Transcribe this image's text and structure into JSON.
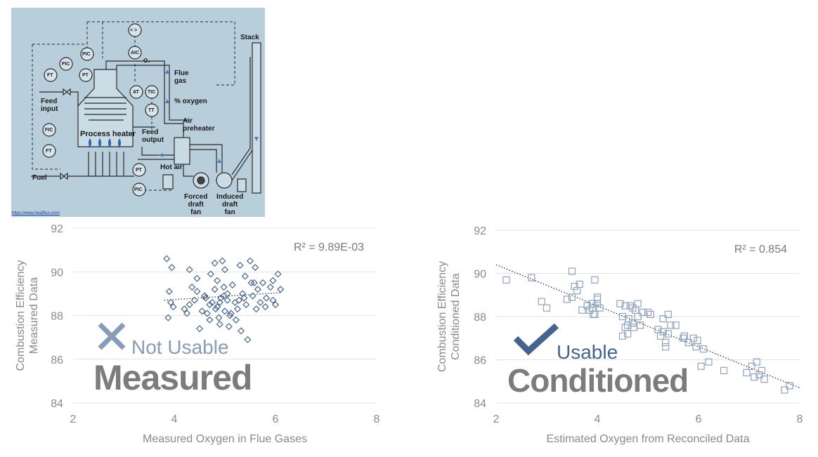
{
  "diagram": {
    "labels": {
      "stack": "Stack",
      "flue_gas": "Flue\ngas",
      "pct_oxygen": "% oxygen",
      "feed_input": "Feed\ninput",
      "process_heater": "Process heater",
      "feed_output": "Feed\noutput",
      "air_preheater": "Air\npreheater",
      "hot_air": "Hot air",
      "fuel": "Fuel",
      "forced_draft_fan": "Forced\ndraft\nfan",
      "induced_draft_fan": "Induced\ndraft\nfan",
      "o2": "O₂"
    },
    "instruments": {
      "pic_top": "PIC",
      "aic": "AIC",
      "selector": "< >",
      "fic_top": "FIC",
      "ft_top": "FT",
      "pt_top": "PT",
      "at": "AT",
      "tic": "TIC",
      "tt": "TT",
      "fic_bottom": "FIC",
      "ft_bottom": "FT",
      "pt_bottom": "PT",
      "pic_bottom": "PIC"
    },
    "credit": "https://www.heatflux.com/"
  },
  "stamps": {
    "left_status": "Not Usable",
    "left_title": "Measured",
    "right_status": "Usable",
    "right_title": "Conditioned"
  },
  "colors": {
    "left_points": "#44648e",
    "right_points": "#8fa3bd",
    "x_mark": "#8a9bb7",
    "check_mark": "#44648e",
    "big_title": "#7c7c7c",
    "axis_text": "#8a8a8a",
    "grid": "#e3e3e3",
    "diagram_bg": "#b8cedb"
  },
  "chart_data": [
    {
      "type": "scatter",
      "title": "",
      "xlabel": "Measured Oxygen in Flue Gases",
      "ylabel": "Combustion Efficiency\nMeasured Data",
      "xlim": [
        2,
        8
      ],
      "ylim": [
        84,
        92
      ],
      "xticks": [
        2,
        4,
        6,
        8
      ],
      "yticks": [
        84,
        86,
        88,
        90,
        92
      ],
      "grid": "horizontal",
      "marker": "diamond",
      "r2_label": "R² = 9.89E-03",
      "trendline": {
        "x": [
          3.8,
          6.1
        ],
        "y": [
          88.7,
          89.05
        ]
      },
      "points": {
        "x": [
          3.85,
          3.95,
          3.9,
          3.98,
          3.88,
          3.93,
          4.3,
          4.35,
          4.4,
          4.45,
          4.2,
          4.25,
          4.3,
          4.6,
          4.55,
          4.5,
          4.45,
          4.62,
          4.7,
          4.65,
          4.75,
          4.8,
          4.72,
          4.8,
          4.85,
          4.88,
          4.9,
          4.92,
          4.95,
          4.98,
          5.0,
          4.9,
          4.85,
          5.0,
          5.05,
          5.1,
          5.05,
          5.08,
          5.15,
          5.2,
          5.25,
          5.22,
          5.3,
          5.35,
          5.28,
          5.32,
          5.4,
          5.42,
          5.45,
          5.5,
          5.52,
          5.55,
          5.6,
          5.58,
          5.62,
          5.65,
          5.7,
          5.75,
          5.8,
          5.82,
          5.9,
          5.95,
          6.0,
          6.05,
          6.1,
          5.95,
          4.82,
          4.98,
          5.12,
          5.38,
          4.7,
          4.6
        ],
        "y": [
          90.6,
          90.2,
          89.1,
          88.4,
          87.9,
          88.6,
          90.1,
          89.3,
          88.7,
          89.1,
          88.3,
          88.1,
          88.5,
          88.9,
          88.2,
          87.4,
          89.7,
          88.8,
          88.5,
          88.1,
          88.6,
          90.4,
          89.9,
          89.2,
          88.4,
          87.9,
          87.6,
          88.8,
          90.5,
          89.3,
          88.2,
          88.6,
          89.6,
          90.1,
          88.7,
          88.0,
          89.0,
          87.5,
          89.4,
          88.6,
          88.3,
          87.8,
          90.3,
          89.0,
          88.7,
          87.3,
          89.8,
          88.5,
          86.9,
          90.5,
          89.5,
          88.9,
          90.2,
          89.5,
          88.3,
          89.2,
          88.6,
          89.5,
          88.4,
          88.8,
          89.3,
          88.7,
          88.5,
          89.9,
          89.2,
          89.6,
          88.3,
          88.9,
          88.1,
          88.8,
          87.8,
          88.9
        ]
      }
    },
    {
      "type": "scatter",
      "title": "",
      "xlabel": "Estimated Oxygen from Reconciled Data",
      "ylabel": "Combustion Efficiency\nConditioned Data",
      "xlim": [
        2,
        8
      ],
      "ylim": [
        84,
        92
      ],
      "xticks": [
        2,
        4,
        6,
        8
      ],
      "yticks": [
        84,
        86,
        88,
        90,
        92
      ],
      "grid": "horizontal",
      "marker": "square",
      "r2_label": "R² = 0.854",
      "trendline": {
        "x": [
          2.0,
          8.0
        ],
        "y": [
          90.4,
          84.7
        ]
      },
      "points": {
        "x": [
          2.2,
          2.7,
          2.9,
          3.0,
          3.5,
          3.55,
          3.6,
          3.65,
          3.7,
          3.5,
          3.8,
          3.85,
          3.9,
          3.95,
          3.95,
          4.0,
          4.05,
          4.0,
          3.9,
          3.92,
          4.45,
          4.5,
          4.55,
          4.6,
          4.62,
          4.5,
          4.55,
          4.6,
          4.7,
          4.72,
          4.75,
          4.8,
          4.85,
          4.8,
          4.9,
          5.0,
          5.05,
          5.2,
          5.25,
          5.3,
          5.35,
          5.3,
          5.35,
          5.4,
          5.45,
          5.55,
          5.7,
          5.72,
          5.8,
          5.9,
          5.95,
          5.98,
          6.05,
          6.1,
          6.2,
          6.5,
          6.95,
          7.05,
          7.1,
          7.15,
          7.2,
          7.25,
          7.3,
          7.7,
          7.8,
          4.65,
          4.7,
          5.4,
          3.4,
          4.0
        ],
        "y": [
          89.7,
          89.8,
          88.7,
          88.4,
          90.1,
          89.4,
          89.2,
          89.5,
          88.3,
          88.9,
          88.5,
          88.3,
          88.6,
          88.1,
          89.7,
          88.6,
          88.4,
          88.8,
          88.4,
          88.1,
          88.6,
          88.0,
          87.5,
          87.2,
          87.9,
          87.1,
          88.5,
          87.6,
          88.4,
          87.5,
          88.3,
          88.6,
          87.6,
          88.0,
          88.2,
          88.2,
          88.1,
          87.4,
          87.1,
          87.3,
          86.8,
          87.9,
          86.6,
          88.1,
          87.6,
          87.6,
          87.0,
          87.1,
          86.8,
          87.0,
          86.6,
          86.9,
          85.7,
          86.5,
          85.9,
          85.5,
          85.4,
          85.7,
          85.2,
          85.9,
          85.3,
          85.5,
          85.1,
          84.6,
          84.8,
          88.5,
          87.7,
          87.2,
          88.8,
          88.9
        ]
      }
    }
  ]
}
